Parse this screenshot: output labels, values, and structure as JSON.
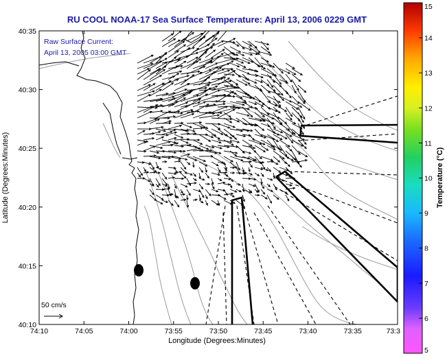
{
  "title": "RU COOL  NOAA-17  Sea Surface Temperature:  April 13, 2006 0229 GMT",
  "inset": {
    "line1": "Raw Surface Current:",
    "line2": "April 13, 2005 03:00 GMT"
  },
  "axes": {
    "xlabel": "Longitude (Degrees:Minutes)",
    "ylabel": "Latitude (Degrees:Minutes)",
    "x_ticks": [
      {
        "label": "74:10",
        "lon": -74.1667
      },
      {
        "label": "74:05",
        "lon": -74.0833
      },
      {
        "label": "74:00",
        "lon": -74.0
      },
      {
        "label": "73:55",
        "lon": -73.9167
      },
      {
        "label": "73:50",
        "lon": -73.8333
      },
      {
        "label": "73:45",
        "lon": -73.75
      },
      {
        "label": "73:40",
        "lon": -73.6667
      },
      {
        "label": "73:35",
        "lon": -73.5833
      },
      {
        "label": "73:3",
        "lon": -73.5
      }
    ],
    "y_ticks": [
      {
        "label": "40:35",
        "lat": 40.5833
      },
      {
        "label": "40:30",
        "lat": 40.5
      },
      {
        "label": "40:25",
        "lat": 40.4167
      },
      {
        "label": "40:20",
        "lat": 40.3333
      },
      {
        "label": "40:15",
        "lat": 40.25
      },
      {
        "label": "40:10",
        "lat": 40.1667
      }
    ],
    "lon_range": [
      -74.1667,
      -73.5
    ],
    "lat_range": [
      40.1667,
      40.5833
    ]
  },
  "colorbar": {
    "label": "Temperature (°C)",
    "min": 5,
    "max": 15,
    "tick_labels": [
      "15",
      "14",
      "13",
      "12",
      "11",
      "10",
      "9",
      "8",
      "7",
      "6",
      "5"
    ]
  },
  "scale_arrow": {
    "label": "50 cm/s",
    "speed_cm_s": 50
  },
  "colors": {
    "title": "#1a1aa8",
    "coast": "#000000",
    "bathymetry": "#9a9a9a",
    "vectors": "#000000"
  },
  "markers": [
    {
      "name": "buoy-west",
      "lon": -73.9833,
      "lat": 40.2383
    },
    {
      "name": "buoy-east",
      "lon": -73.9333,
      "lat": 40.225
    }
  ]
}
